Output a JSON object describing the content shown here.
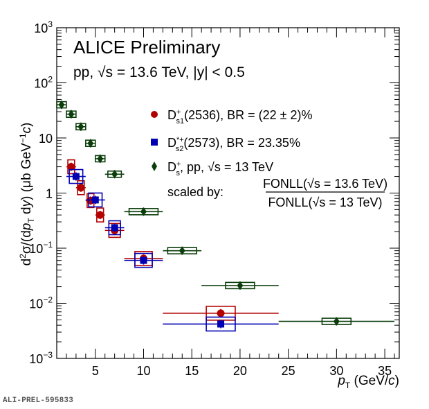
{
  "chart_data": {
    "type": "scatter",
    "title": "ALICE Preliminary",
    "subtitle": "pp, √s = 13.6 TeV, |y| < 0.5",
    "xlabel": "p_T (GeV/c)",
    "ylabel": "d²σ/(dp_T dy) (μb GeV⁻¹c)",
    "xlim": [
      1,
      36.5
    ],
    "ylim": [
      0.001,
      1000
    ],
    "yscale": "log",
    "x_ticks": [
      5,
      10,
      15,
      20,
      25,
      30,
      35
    ],
    "x_tick_labels": [
      "5",
      "10",
      "15",
      "20",
      "25",
      "30",
      "35"
    ],
    "y_ticks": [
      0.001,
      0.01,
      0.1,
      1,
      10,
      100,
      1000
    ],
    "y_tick_labels": [
      {
        "base": "10",
        "exp": "−3"
      },
      {
        "base": "10",
        "exp": "−2"
      },
      {
        "base": "10",
        "exp": "−1"
      },
      {
        "base": "1",
        "exp": ""
      },
      {
        "base": "10",
        "exp": ""
      },
      {
        "base": "10",
        "exp": "2"
      },
      {
        "base": "10",
        "exp": "3"
      }
    ],
    "grid": false,
    "legend_position": "top-right",
    "series": [
      {
        "name": "Ds+ pp 13 TeV scaled",
        "legend_label": "D_s^+, pp, √s = 13 TeV",
        "marker": "diamond",
        "color": "#0b3d0b",
        "x": [
          1.5,
          2.5,
          3.5,
          4.5,
          5.5,
          7,
          10,
          14,
          20,
          30
        ],
        "xerr": [
          0.5,
          0.5,
          0.5,
          0.5,
          0.5,
          1,
          2,
          2,
          4,
          6
        ],
        "y": [
          40,
          27,
          16,
          8,
          4.2,
          2.2,
          0.46,
          0.09,
          0.021,
          0.0047
        ],
        "syst_box": [
          0.5,
          0.5,
          0.5,
          0.5,
          0.5,
          0.7,
          1.5,
          1.5,
          1.5,
          1.5
        ]
      },
      {
        "name": "Ds1+(2536)",
        "legend_label": "D_s1^+(2536), BR = (22 ± 2)%",
        "marker": "circle",
        "color": "#b30000",
        "x": [
          2.5,
          3.5,
          4.5,
          5.5,
          7,
          10,
          18
        ],
        "xerr": [
          0.5,
          0.5,
          0.5,
          0.5,
          1,
          2,
          6
        ],
        "y": [
          3.0,
          1.25,
          0.73,
          0.4,
          0.21,
          0.065,
          0.0066
        ],
        "syst_box": [
          0.35,
          0.35,
          0.35,
          0.35,
          0.6,
          0.9,
          1.5
        ]
      },
      {
        "name": "Ds2*+(2573)",
        "legend_label": "D*+_s2(2573), BR = 23.35%",
        "marker": "square",
        "color": "#0000b3",
        "x": [
          3,
          5,
          7,
          10,
          18
        ],
        "xerr": [
          1,
          1,
          1,
          2,
          6
        ],
        "y": [
          2.0,
          0.75,
          0.235,
          0.06,
          0.0042
        ],
        "syst_box": [
          0.7,
          0.7,
          0.6,
          0.9,
          1.5
        ]
      }
    ],
    "legend": {
      "entries": [
        {
          "main": "D",
          "sup": "+",
          "sub": "s1",
          "rest": "(2536), BR = (22 ± 2)%"
        },
        {
          "main": "D",
          "sup": "*+",
          "sub": "s2",
          "rest": "(2573), BR = 23.35%"
        },
        {
          "main": "D",
          "sup": "+",
          "sub": "s",
          "rest": ", pp, √s = 13 TeV"
        }
      ],
      "scaled_by_label": "scaled by:",
      "fraction_numerator": "FONLL(√s = 13.6 TeV)",
      "fraction_denominator": "FONLL(√s = 13 TeV)"
    }
  },
  "watermark": "ALI-PREL-595833"
}
